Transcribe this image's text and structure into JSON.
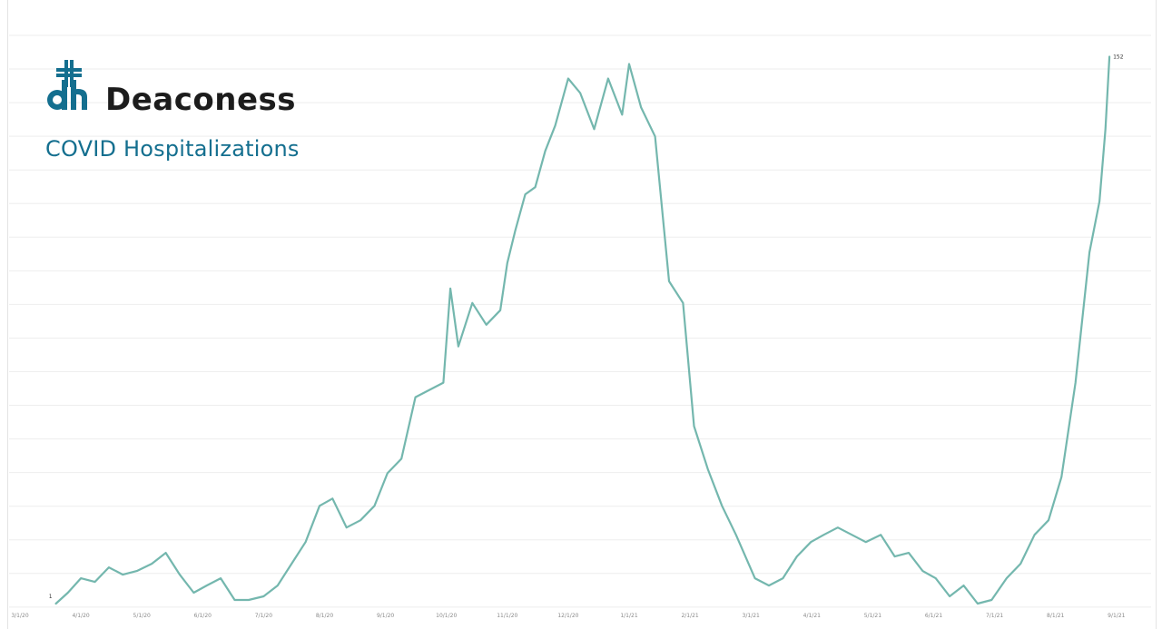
{
  "header": {
    "brand_name": "Deaconess",
    "subtitle": "COVID Hospitalizations",
    "brand_color": "#146f8f",
    "brand_icon": "dh-cross-logo-icon"
  },
  "chart_data": {
    "type": "line",
    "title": "COVID Hospitalizations",
    "xlabel": "",
    "ylabel": "",
    "grid": true,
    "legend": "none",
    "line_color": "#74b7ae",
    "ylim": [
      0,
      160
    ],
    "x_tick_labels": [
      "3/1/20",
      "4/1/20",
      "5/1/20",
      "6/1/20",
      "7/1/20",
      "8/1/20",
      "9/1/20",
      "10/1/20",
      "11/1/20",
      "12/1/20",
      "1/1/21",
      "2/1/21",
      "3/1/21",
      "4/1/21",
      "5/1/21",
      "6/1/21",
      "7/1/21",
      "8/1/21",
      "9/1/21"
    ],
    "annotations": [
      {
        "label": "1",
        "x": "3/19/20",
        "y": 1
      },
      {
        "label": "152",
        "x": "8/28/21",
        "y": 152
      }
    ],
    "series": [
      {
        "name": "COVID Hospitalizations",
        "x": [
          "3/19/20",
          "3/25/20",
          "4/1/20",
          "4/8/20",
          "4/15/20",
          "4/22/20",
          "4/29/20",
          "5/6/20",
          "5/13/20",
          "5/20/20",
          "5/27/20",
          "6/3/20",
          "6/10/20",
          "6/17/20",
          "6/24/20",
          "7/1/20",
          "7/8/20",
          "7/15/20",
          "7/22/20",
          "7/29/20",
          "8/5/20",
          "8/12/20",
          "8/19/20",
          "8/26/20",
          "9/2/20",
          "9/9/20",
          "9/16/20",
          "9/23/20",
          "9/30/20",
          "10/3/20",
          "10/7/20",
          "10/14/20",
          "10/21/20",
          "10/28/20",
          "11/1/20",
          "11/5/20",
          "11/10/20",
          "11/15/20",
          "11/20/20",
          "11/25/20",
          "12/1/20",
          "12/7/20",
          "12/14/20",
          "12/21/20",
          "12/28/20",
          "1/1/21",
          "1/7/21",
          "1/14/21",
          "1/21/21",
          "1/28/21",
          "2/3/21",
          "2/10/21",
          "2/17/21",
          "2/24/21",
          "3/3/21",
          "3/10/21",
          "3/17/21",
          "3/24/21",
          "3/31/21",
          "4/7/21",
          "4/14/21",
          "4/21/21",
          "4/28/21",
          "5/5/21",
          "5/12/21",
          "5/19/21",
          "5/26/21",
          "6/2/21",
          "6/9/21",
          "6/16/21",
          "6/23/21",
          "6/30/21",
          "7/7/21",
          "7/14/21",
          "7/21/21",
          "7/28/21",
          "8/4/21",
          "8/11/21",
          "8/18/21",
          "8/23/21",
          "8/26/21",
          "8/28/21"
        ],
        "values": [
          1,
          4,
          8,
          7,
          11,
          9,
          10,
          12,
          15,
          9,
          4,
          6,
          8,
          2,
          2,
          3,
          6,
          12,
          18,
          28,
          30,
          22,
          24,
          28,
          37,
          41,
          58,
          60,
          62,
          88,
          72,
          84,
          78,
          82,
          95,
          104,
          114,
          116,
          126,
          133,
          146,
          142,
          132,
          146,
          136,
          150,
          138,
          130,
          90,
          84,
          50,
          38,
          28,
          20,
          8,
          6,
          8,
          14,
          18,
          20,
          22,
          20,
          18,
          20,
          14,
          15,
          10,
          8,
          3,
          6,
          1,
          2,
          8,
          12,
          20,
          24,
          36,
          62,
          98,
          112,
          132,
          152
        ]
      }
    ]
  }
}
